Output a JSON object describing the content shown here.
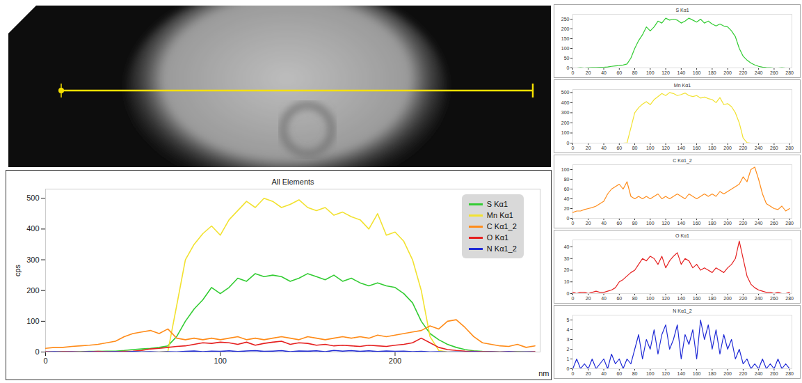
{
  "chart_data": [
    {
      "type": "line",
      "title": "All Elements",
      "x_label": "nm",
      "y_label": "cps",
      "x": [
        0,
        5,
        10,
        15,
        20,
        25,
        30,
        35,
        40,
        45,
        50,
        55,
        60,
        65,
        70,
        75,
        80,
        85,
        90,
        95,
        100,
        105,
        110,
        115,
        120,
        125,
        130,
        135,
        140,
        145,
        150,
        155,
        160,
        165,
        170,
        175,
        180,
        185,
        190,
        195,
        200,
        205,
        210,
        215,
        220,
        225,
        230,
        235,
        240,
        245,
        250,
        255,
        260,
        265,
        270,
        275,
        280
      ],
      "xlim": [
        0,
        283
      ],
      "xticks": [
        0,
        100,
        200
      ],
      "ylim": [
        0,
        530
      ],
      "yticks": [
        0,
        100,
        200,
        300,
        400,
        500
      ],
      "legend": "upper right",
      "series": [
        {
          "name": "S Kα1",
          "color": "#33cc33",
          "values": [
            0,
            0,
            1,
            0,
            1,
            2,
            2,
            3,
            3,
            5,
            8,
            10,
            12,
            15,
            20,
            50,
            100,
            140,
            170,
            210,
            190,
            210,
            240,
            230,
            255,
            245,
            250,
            245,
            230,
            240,
            255,
            245,
            235,
            250,
            230,
            240,
            225,
            215,
            225,
            215,
            210,
            190,
            160,
            100,
            60,
            40,
            25,
            15,
            8,
            4,
            2,
            1,
            0,
            0,
            1,
            0,
            0
          ]
        },
        {
          "name": "Mn Kα1",
          "color": "#f2e230",
          "values": [
            0,
            0,
            0,
            0,
            0,
            0,
            0,
            0,
            0,
            0,
            0,
            0,
            0,
            0,
            2,
            150,
            300,
            350,
            385,
            410,
            380,
            430,
            460,
            490,
            470,
            500,
            490,
            470,
            480,
            495,
            470,
            460,
            470,
            445,
            455,
            440,
            430,
            400,
            450,
            380,
            390,
            360,
            300,
            200,
            50,
            5,
            0,
            0,
            0,
            0,
            0,
            0,
            0,
            0,
            0,
            0,
            0
          ]
        },
        {
          "name": "C Kα1_2",
          "color": "#ff8c1a",
          "values": [
            12,
            15,
            15,
            18,
            20,
            22,
            25,
            30,
            35,
            50,
            60,
            65,
            70,
            60,
            75,
            45,
            40,
            45,
            40,
            45,
            40,
            45,
            50,
            40,
            45,
            40,
            45,
            50,
            45,
            40,
            50,
            45,
            40,
            45,
            50,
            45,
            50,
            45,
            55,
            50,
            55,
            60,
            65,
            70,
            85,
            75,
            100,
            105,
            80,
            50,
            30,
            25,
            20,
            18,
            25,
            15,
            20
          ]
        },
        {
          "name": "O Kα1",
          "color": "#e52020",
          "values": [
            1,
            0,
            1,
            1,
            0,
            1,
            2,
            1,
            1,
            2,
            3,
            5,
            10,
            12,
            15,
            18,
            20,
            25,
            30,
            28,
            32,
            30,
            25,
            32,
            22,
            28,
            32,
            35,
            25,
            30,
            28,
            22,
            25,
            20,
            22,
            20,
            18,
            22,
            20,
            18,
            22,
            25,
            30,
            45,
            30,
            15,
            8,
            5,
            3,
            2,
            1,
            1,
            0,
            1,
            0,
            0,
            1
          ]
        },
        {
          "name": "N Kα1_2",
          "color": "#1f2ad6",
          "values": [
            0,
            1,
            0,
            0.5,
            0,
            1,
            0,
            0.5,
            1,
            0,
            1.5,
            0.5,
            1,
            0,
            1,
            0.5,
            2,
            3.5,
            1,
            3,
            2,
            4,
            1.5,
            3.5,
            4.5,
            2,
            3,
            4.5,
            1,
            3.5,
            2.5,
            4,
            1,
            5,
            3,
            4.5,
            2,
            4,
            1.5,
            3.5,
            2,
            3,
            1,
            2,
            0.5,
            1,
            0,
            0.5,
            0,
            1,
            0,
            0.5,
            0,
            1,
            0,
            0.5,
            0
          ]
        }
      ]
    },
    {
      "type": "line",
      "title": "S Kα1",
      "xlim": [
        0,
        283
      ],
      "xticks": [
        0,
        20,
        40,
        60,
        80,
        100,
        120,
        140,
        160,
        180,
        200,
        220,
        240,
        260,
        280
      ],
      "ylim": [
        0,
        275
      ],
      "yticks": [
        0,
        50,
        100,
        150,
        200,
        250
      ]
    },
    {
      "type": "line",
      "title": "Mn Kα1",
      "xlim": [
        0,
        283
      ],
      "xticks": [
        0,
        20,
        40,
        60,
        80,
        100,
        120,
        140,
        160,
        180,
        200,
        220,
        240,
        260,
        280
      ],
      "ylim": [
        0,
        530
      ],
      "yticks": [
        0,
        100,
        200,
        300,
        400,
        500
      ]
    },
    {
      "type": "line",
      "title": "C Kα1_2",
      "xlim": [
        0,
        283
      ],
      "xticks": [
        0,
        20,
        40,
        60,
        80,
        100,
        120,
        140,
        160,
        180,
        200,
        220,
        240,
        260,
        280
      ],
      "ylim": [
        0,
        110
      ],
      "yticks": [
        0,
        20,
        40,
        60,
        80,
        100
      ]
    },
    {
      "type": "line",
      "title": "O Kα1",
      "xlim": [
        0,
        283
      ],
      "xticks": [
        0,
        20,
        40,
        60,
        80,
        100,
        120,
        140,
        160,
        180,
        200,
        220,
        240,
        260,
        280
      ],
      "ylim": [
        0,
        46
      ],
      "yticks": [
        0,
        10,
        20,
        30,
        40
      ]
    },
    {
      "type": "line",
      "title": "N Kα1_2",
      "xlim": [
        0,
        283
      ],
      "xticks": [
        0,
        20,
        40,
        60,
        80,
        100,
        120,
        140,
        160,
        180,
        200,
        220,
        240,
        260,
        280
      ],
      "ylim": [
        0,
        5.5
      ],
      "yticks": [
        0,
        1,
        2,
        3,
        4,
        5
      ]
    }
  ]
}
